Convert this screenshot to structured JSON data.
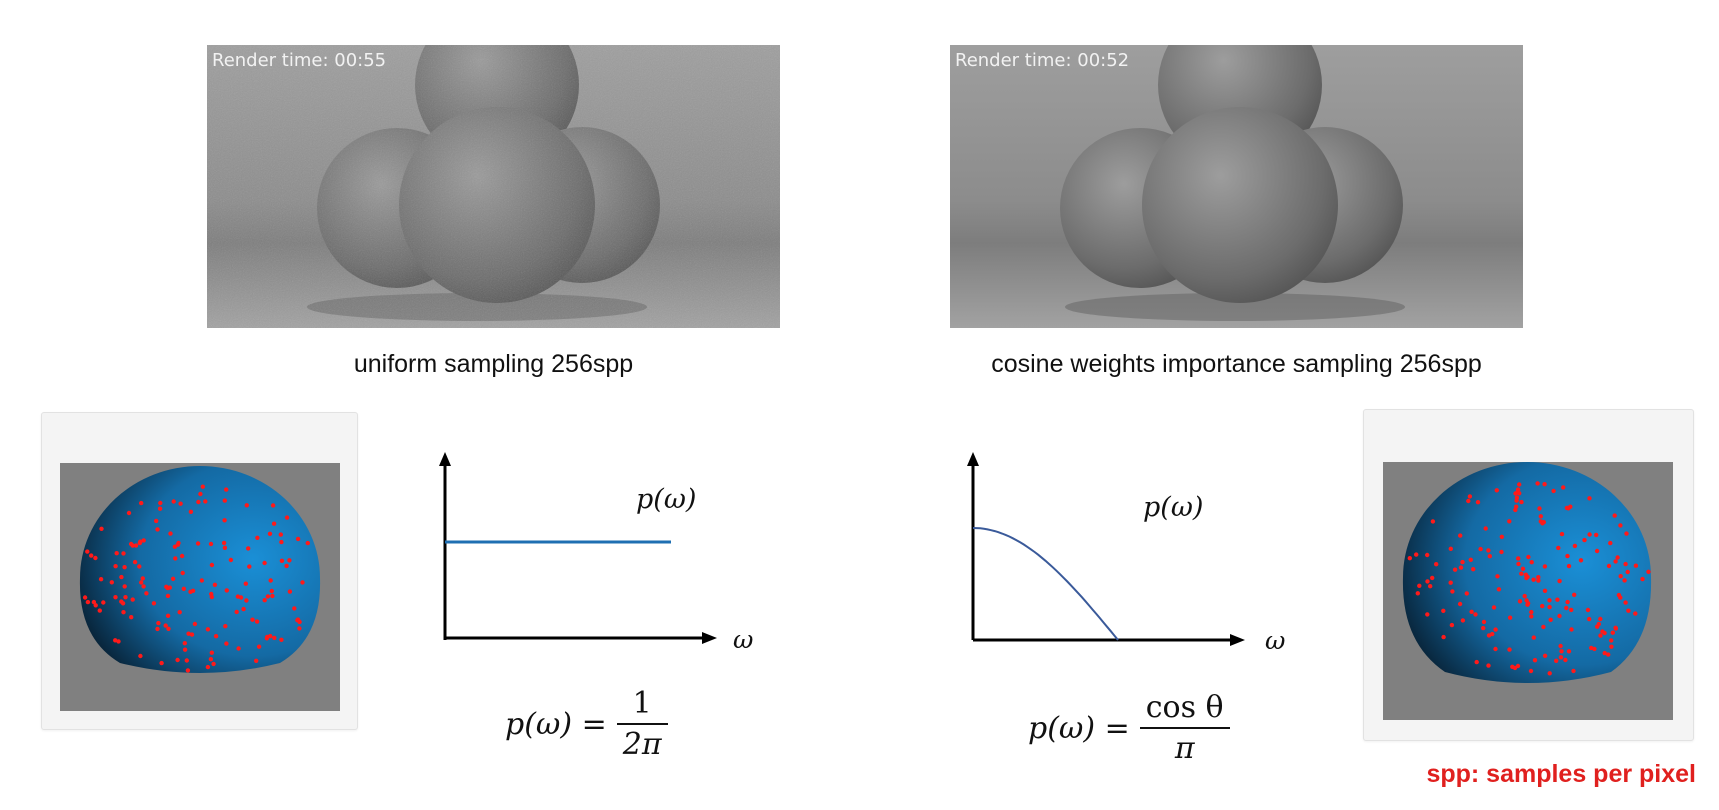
{
  "renders": [
    {
      "render_time_label": "Render time: 00:55",
      "caption": "uniform sampling 256spp"
    },
    {
      "render_time_label": "Render time: 00:52",
      "caption": "cosine weights importance sampling 256spp"
    }
  ],
  "plots": [
    {
      "curve_label": "p(ω)",
      "x_axis_label": "ω",
      "formula": {
        "lhs": "p(ω) =",
        "numerator": "1",
        "denominator": "2π"
      }
    },
    {
      "curve_label": "p(ω)",
      "x_axis_label": "ω",
      "formula": {
        "lhs": "p(ω) =",
        "numerator": "cos θ",
        "denominator": "π"
      }
    }
  ],
  "note": "spp: samples per pixel",
  "colors": {
    "sphere": "#1a86cc",
    "sample_dots": "#ff1a1a",
    "uniform_line": "#1f6fb2",
    "cosine_curve": "#3a5a9a",
    "note_text": "#e0201e"
  },
  "icons": {
    "hemisphere_samples": "hemisphere-with-sample-points"
  }
}
